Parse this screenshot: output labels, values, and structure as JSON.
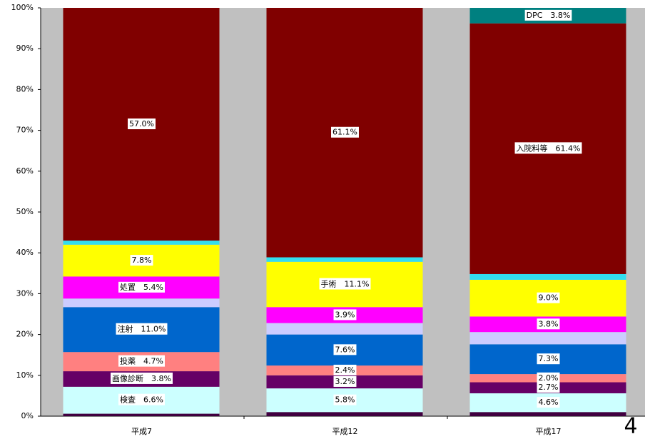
{
  "chart_data": {
    "type": "bar",
    "stacked": true,
    "categories": [
      "平成7",
      "平成12",
      "平成17"
    ],
    "ylim": [
      0,
      100
    ],
    "yticks": [
      {
        "value": 0,
        "label": "0%"
      },
      {
        "value": 10,
        "label": "10%"
      },
      {
        "value": 20,
        "label": "20%"
      },
      {
        "value": 30,
        "label": "30%"
      },
      {
        "value": 40,
        "label": "40%"
      },
      {
        "value": 50,
        "label": "50%"
      },
      {
        "value": 60,
        "label": "60%"
      },
      {
        "value": 70,
        "label": "70%"
      },
      {
        "value": 80,
        "label": "80%"
      },
      {
        "value": 90,
        "label": "90%"
      },
      {
        "value": 100,
        "label": "100%"
      }
    ],
    "background": "#c0c0c0",
    "series": [
      {
        "color": "#400040",
        "values": [
          0.6,
          1.0,
          1.0
        ]
      },
      {
        "name": "検査",
        "color": "#ccffff",
        "values": [
          6.6,
          5.8,
          4.6
        ],
        "value_labels": [
          "検査　6.6%",
          "5.8%",
          "4.6%"
        ]
      },
      {
        "name": "画像診断",
        "color": "#660066",
        "values": [
          3.8,
          3.2,
          2.7
        ],
        "value_labels": [
          "画像診断　3.8%",
          "3.2%",
          "2.7%"
        ]
      },
      {
        "name": "投薬",
        "color": "#ff8080",
        "values": [
          4.7,
          2.4,
          2.0
        ],
        "value_labels": [
          "投薬　4.7%",
          "2.4%",
          "2.0%"
        ]
      },
      {
        "name": "注射",
        "color": "#0066cc",
        "values": [
          11.0,
          7.6,
          7.3
        ],
        "value_labels": [
          "注射　11.0%",
          "7.6%",
          "7.3%"
        ]
      },
      {
        "color": "#ccccff",
        "values": [
          2.1,
          2.8,
          3.0
        ]
      },
      {
        "name": "処置",
        "color": "#ff00ff",
        "values": [
          5.4,
          3.9,
          3.8
        ],
        "value_labels": [
          "処置　5.4%",
          "3.9%",
          "3.8%"
        ]
      },
      {
        "name": "手術",
        "color": "#ffff00",
        "values": [
          7.8,
          11.1,
          9.0
        ],
        "value_labels": [
          "7.8%",
          "手術　11.1%",
          "9.0%"
        ]
      },
      {
        "color": "#33ddee",
        "values": [
          1.0,
          1.1,
          1.4
        ]
      },
      {
        "name": "入院料等",
        "color": "#800000",
        "values": [
          57.0,
          61.1,
          61.4
        ],
        "value_labels": [
          "57.0%",
          "61.1%",
          "入院料等　61.4%"
        ]
      },
      {
        "name": "DPC",
        "color": "#008080",
        "values": [
          0,
          0,
          3.8
        ],
        "value_labels": [
          null,
          null,
          "DPC　3.8%"
        ]
      }
    ]
  },
  "page_number": "4"
}
